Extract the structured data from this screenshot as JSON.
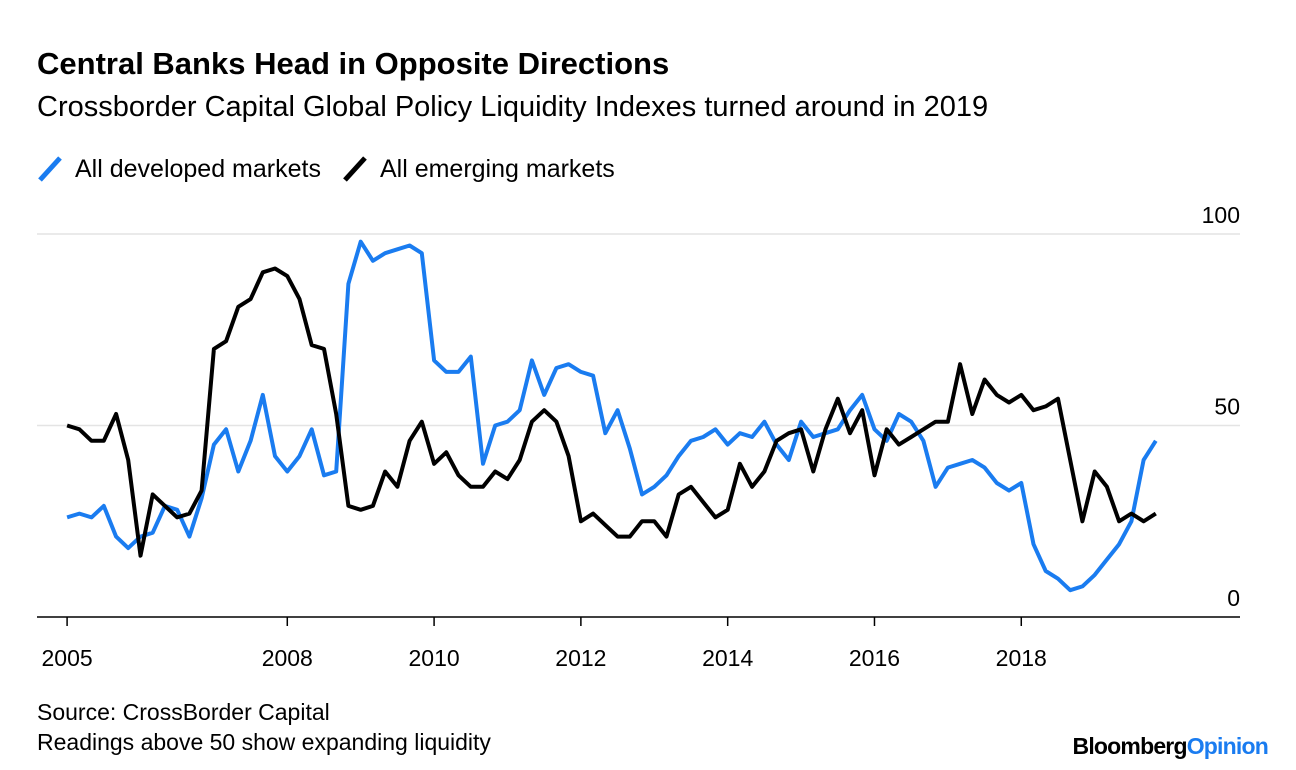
{
  "chart_data": {
    "type": "line",
    "title": "Central Banks Head in Opposite Directions",
    "subtitle": "Crossborder Capital Global Policy Liquidity Indexes turned around in 2019",
    "source": "Source: CrossBorder Capital",
    "note": "Readings above 50 show expanding liquidity",
    "x": [
      2005,
      2005.167,
      2005.333,
      2005.5,
      2005.667,
      2005.833,
      2006,
      2006.167,
      2006.333,
      2006.5,
      2006.667,
      2006.833,
      2007,
      2007.167,
      2007.333,
      2007.5,
      2007.667,
      2007.833,
      2008,
      2008.167,
      2008.333,
      2008.5,
      2008.667,
      2008.833,
      2009,
      2009.167,
      2009.333,
      2009.5,
      2009.667,
      2009.833,
      2010,
      2010.167,
      2010.333,
      2010.5,
      2010.667,
      2010.833,
      2011,
      2011.167,
      2011.333,
      2011.5,
      2011.667,
      2011.833,
      2012,
      2012.167,
      2012.333,
      2012.5,
      2012.667,
      2012.833,
      2013,
      2013.167,
      2013.333,
      2013.5,
      2013.667,
      2013.833,
      2014,
      2014.167,
      2014.333,
      2014.5,
      2014.667,
      2014.833,
      2015,
      2015.167,
      2015.333,
      2015.5,
      2015.667,
      2015.833,
      2016,
      2016.167,
      2016.333,
      2016.5,
      2016.667,
      2016.833,
      2017,
      2017.167,
      2017.333,
      2017.5,
      2017.667,
      2017.833,
      2018,
      2018.167,
      2018.333,
      2018.5,
      2018.667,
      2018.833,
      2019,
      2019.167,
      2019.333,
      2019.5,
      2019.667,
      2019.833
    ],
    "series": [
      {
        "name": "All developed markets",
        "color": "#1a7cf0",
        "values": [
          26,
          27,
          26,
          29,
          21,
          18,
          21,
          22,
          29,
          28,
          21,
          31,
          45,
          49,
          38,
          46,
          58,
          42,
          38,
          42,
          49,
          37,
          38,
          87,
          98,
          93,
          95,
          96,
          97,
          95,
          67,
          64,
          64,
          68,
          40,
          50,
          51,
          54,
          67,
          58,
          65,
          66,
          64,
          63,
          48,
          54,
          44,
          32,
          34,
          37,
          42,
          46,
          47,
          49,
          45,
          48,
          47,
          51,
          45,
          41,
          51,
          47,
          48,
          49,
          54,
          58,
          49,
          46,
          53,
          51,
          46,
          34,
          39,
          40,
          41,
          39,
          35,
          33,
          35,
          19,
          12,
          10,
          7,
          8,
          11,
          15,
          19,
          25,
          41,
          46
        ]
      },
      {
        "name": "All emerging markets",
        "color": "#000000",
        "values": [
          50,
          49,
          46,
          46,
          53,
          41,
          16,
          32,
          29,
          26,
          27,
          33,
          70,
          72,
          81,
          83,
          90,
          91,
          89,
          83,
          71,
          70,
          53,
          29,
          28,
          29,
          38,
          34,
          46,
          51,
          40,
          43,
          37,
          34,
          34,
          38,
          36,
          41,
          51,
          54,
          51,
          42,
          25,
          27,
          24,
          21,
          21,
          25,
          25,
          21,
          32,
          34,
          30,
          26,
          28,
          40,
          34,
          38,
          46,
          48,
          49,
          38,
          49,
          57,
          48,
          54,
          37,
          49,
          45,
          47,
          49,
          51,
          51,
          66,
          53,
          62,
          58,
          56,
          58,
          54,
          55,
          57,
          41,
          25,
          38,
          34,
          25,
          27,
          25,
          27
        ]
      }
    ],
    "xlim": [
      2004.59,
      2020.98
    ],
    "xticks": [
      2005,
      2008,
      2010,
      2012,
      2014,
      2016,
      2018
    ],
    "ylim": [
      0,
      100
    ],
    "yticks": [
      0,
      50,
      100
    ],
    "grid": true
  },
  "logo": {
    "name": "Bloomberg",
    "suffix": "Opinion"
  }
}
